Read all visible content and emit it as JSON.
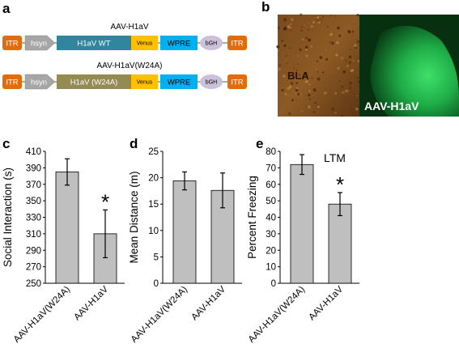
{
  "panels": {
    "a": "a",
    "b": "b",
    "c": "c",
    "d": "d",
    "e": "e"
  },
  "constructs": [
    {
      "title": "AAV-H1aV",
      "segments": {
        "itr_left": "ITR",
        "promoter": "hsyn",
        "insert": "H1aV WT",
        "venus": "Venus",
        "wpre": "WPRE",
        "bgh": "bGH",
        "itr_right": "ITR"
      }
    },
    {
      "title": "AAV-H1aV(W24A)",
      "segments": {
        "itr_left": "ITR",
        "promoter": "hsyn",
        "insert": "H1aV (W24A)",
        "venus": "Venus",
        "wpre": "WPRE",
        "bgh": "bGH",
        "itr_right": "ITR"
      }
    }
  ],
  "colors": {
    "itr": "#e36c0a",
    "promoter": "#a6a6a6",
    "insert_wt": "#31859c",
    "insert_mut": "#948a54",
    "venus": "#ffc000",
    "wpre": "#00b0f0",
    "bgh": "#ccc0da",
    "bar_fill": "#bfbfbf",
    "bla_label": "#2a1400",
    "fluor_label": "#ffffff"
  },
  "micrograph": {
    "left_label": "BLA",
    "right_label": "AAV-H1aV"
  },
  "chart_data": [
    {
      "type": "bar",
      "panel": "c",
      "categories": [
        "AAV-H1aV(W24A)",
        "AAV-H1aV"
      ],
      "values": [
        385,
        310
      ],
      "errors": [
        16,
        29
      ],
      "ylabel": "Social Interaction (s)",
      "ylim": [
        250,
        410
      ],
      "yticks": [
        "250",
        "270",
        "290",
        "310",
        "330",
        "350",
        "370",
        "390",
        "410"
      ],
      "significance": [
        "",
        "*"
      ]
    },
    {
      "type": "bar",
      "panel": "d",
      "categories": [
        "AAV-H1aV(W24A)",
        "AAV-H1aV"
      ],
      "values": [
        19.4,
        17.6
      ],
      "errors": [
        1.7,
        3.3
      ],
      "ylabel": "Mean Distance (m)",
      "ylim": [
        0,
        25
      ],
      "yticks": [
        "0",
        "5",
        "10",
        "15",
        "20",
        "25"
      ],
      "significance": [
        "",
        ""
      ]
    },
    {
      "type": "bar",
      "panel": "e",
      "categories": [
        "AAV-H1aV(W24A)",
        "AAV-H1aV"
      ],
      "values": [
        72,
        48
      ],
      "errors": [
        6,
        7
      ],
      "ylabel": "Percent Freezing",
      "ylim": [
        0,
        80
      ],
      "yticks": [
        "0",
        "10",
        "20",
        "30",
        "40",
        "50",
        "60",
        "70",
        "80"
      ],
      "annotation": "LTM",
      "significance": [
        "",
        "*"
      ]
    }
  ]
}
